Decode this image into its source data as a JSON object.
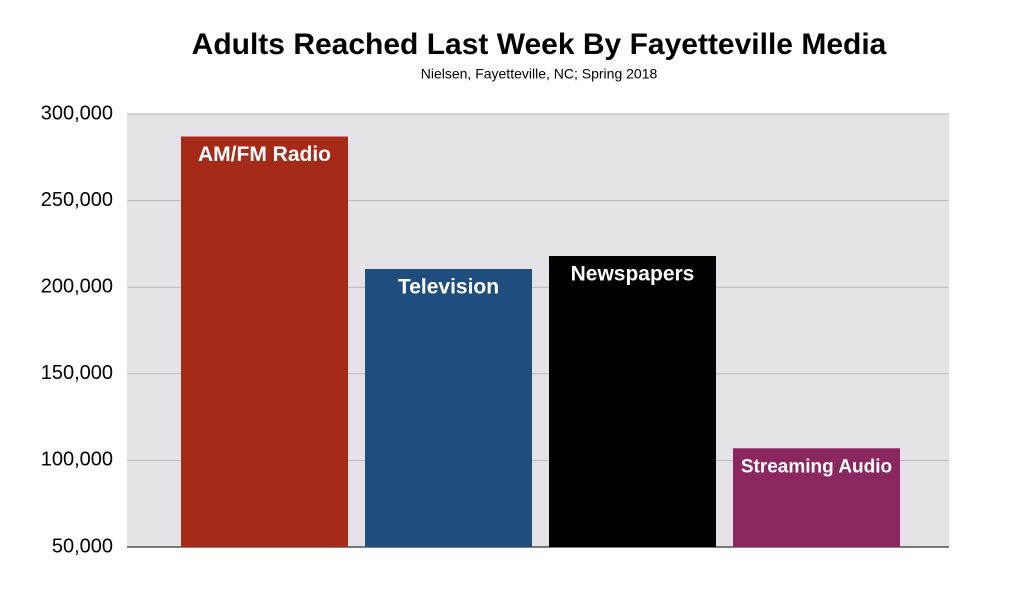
{
  "chart_data": {
    "type": "bar",
    "title": "Adults Reached Last Week By Fayetteville Media",
    "subtitle": "Nielsen, Fayetteville, NC; Spring 2018",
    "categories": [
      "AM/FM Radio",
      "Television",
      "Newspapers",
      "Streaming Audio"
    ],
    "values": [
      287000,
      210500,
      218000,
      107000
    ],
    "colors": [
      "#a52a18",
      "#1f4e7e",
      "#000000",
      "#8a2760"
    ],
    "ylim": [
      50000,
      300000
    ],
    "yticks": [
      {
        "value": 50000,
        "label": "50,000"
      },
      {
        "value": 100000,
        "label": "100,000"
      },
      {
        "value": 150000,
        "label": "150,000"
      },
      {
        "value": 200000,
        "label": "200,000"
      },
      {
        "value": 250000,
        "label": "250,000"
      },
      {
        "value": 300000,
        "label": "300,000"
      }
    ],
    "grid": true
  }
}
